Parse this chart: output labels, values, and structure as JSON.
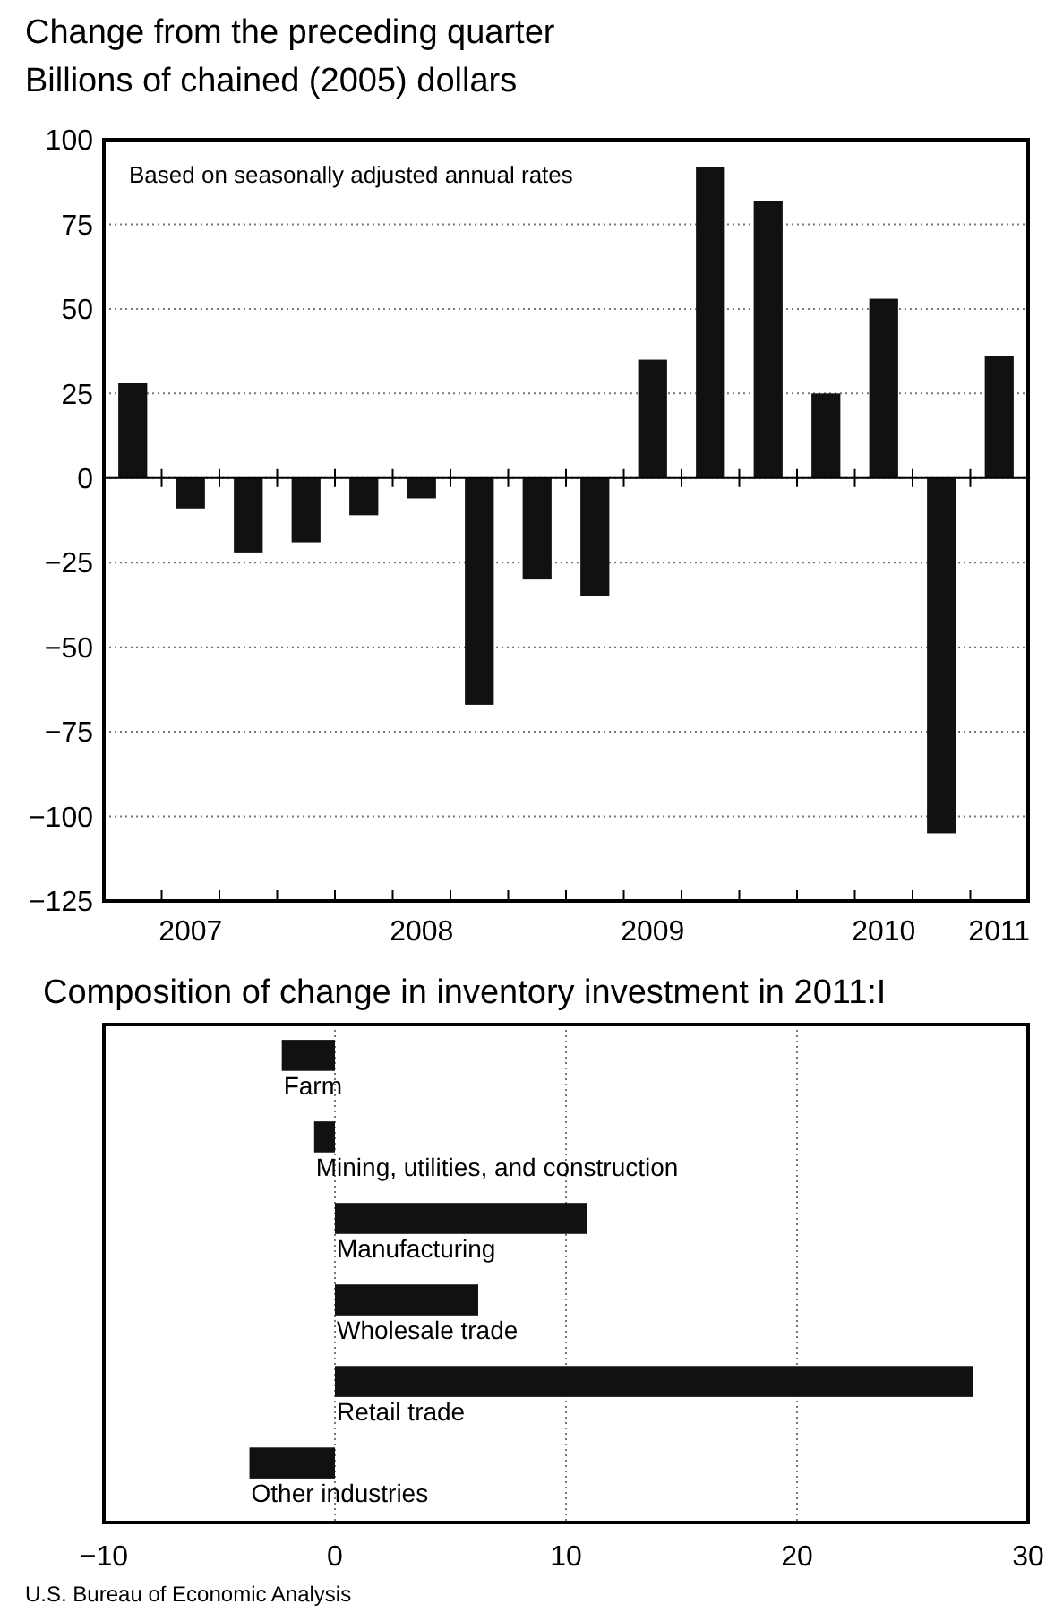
{
  "chart_data": [
    {
      "type": "bar",
      "title": "Change from the preceding quarter",
      "subtitle": "Billions of chained (2005) dollars",
      "annotations": [
        "Based on seasonally adjusted annual rates"
      ],
      "categories": [
        null,
        "2007",
        null,
        null,
        null,
        "2008",
        null,
        null,
        null,
        "2009",
        null,
        null,
        null,
        "2010",
        null,
        "2011"
      ],
      "values": [
        28,
        -9,
        -22,
        -19,
        -11,
        -6,
        -67,
        -30,
        -35,
        35,
        92,
        82,
        25,
        53,
        -105,
        36
      ],
      "color": "#111111",
      "ylim": [
        -125,
        100
      ],
      "yticks": [
        {
          "value": -125,
          "label": "−125"
        },
        {
          "value": -100,
          "label": "−100"
        },
        {
          "value": -75,
          "label": "−75"
        },
        {
          "value": -50,
          "label": "−50"
        },
        {
          "value": -25,
          "label": "−25"
        },
        0,
        25,
        50,
        75,
        100
      ],
      "grid": "y"
    },
    {
      "type": "bar",
      "orientation": "horizontal",
      "title": "Composition of change in inventory investment in 2011:I",
      "annotations": [
        "U.S. Bureau of Economic Analysis"
      ],
      "categories": [
        "Farm",
        "Mining, utilities, and construction",
        "Manufacturing",
        "Wholesale trade",
        "Retail trade",
        "Other industries"
      ],
      "values": [
        -2.3,
        -0.9,
        10.9,
        6.2,
        27.6,
        -3.7
      ],
      "color": "#111111",
      "xlim": [
        -10,
        30
      ],
      "xticks": [
        {
          "value": -10,
          "label": "−10"
        },
        0,
        10,
        20,
        30
      ],
      "grid": "x"
    }
  ]
}
